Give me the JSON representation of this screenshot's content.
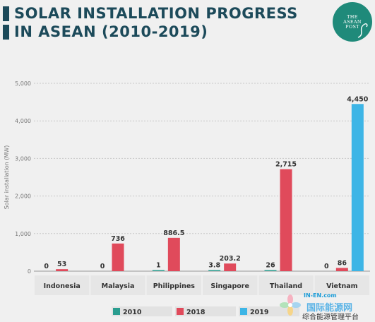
{
  "title": {
    "line1": "SOLAR INSTALLATION PROGRESS",
    "line2": "IN ASEAN (2010-2019)"
  },
  "logo": {
    "line1": "THE",
    "line2": "ASEAN",
    "line3": "POST"
  },
  "watermark": {
    "site": "IN-EN.com",
    "name_cn": "国际能源网",
    "account": "综合能源管理平台"
  },
  "colors": {
    "title": "#1c4a5a",
    "2010": "#2a9d8f",
    "2018": "#e04a5b",
    "2019": "#3db5e6"
  },
  "chart_data": {
    "type": "bar",
    "title": "SOLAR INSTALLATION PROGRESS IN ASEAN (2010-2019)",
    "ylabel": "Solar installation (MW)",
    "xlabel": "",
    "ylim": [
      0,
      5000
    ],
    "yticks": [
      "0",
      "1,000",
      "2,000",
      "3,000",
      "4,000",
      "5,000"
    ],
    "ytick_values": [
      0,
      1000,
      2000,
      3000,
      4000,
      5000
    ],
    "grid": true,
    "legend": "bottom",
    "categories": [
      "Indonesia",
      "Malaysia",
      "Philippines",
      "Singapore",
      "Thailand",
      "Vietnam"
    ],
    "series": [
      {
        "name": "2010",
        "color": "#2a9d8f",
        "values": [
          0,
          0,
          1,
          3.8,
          26,
          0
        ],
        "labels": [
          "0",
          "0",
          "1",
          "3.8",
          "26",
          "0"
        ]
      },
      {
        "name": "2018",
        "color": "#e04a5b",
        "values": [
          53,
          736,
          886.5,
          203.2,
          2715,
          86
        ],
        "labels": [
          "53",
          "736",
          "886.5",
          "203.2",
          "2,715",
          "86"
        ]
      },
      {
        "name": "2019",
        "color": "#3db5e6",
        "values": [
          null,
          null,
          null,
          null,
          null,
          4450
        ],
        "labels": [
          "",
          "",
          "",
          "",
          "",
          "4,450"
        ]
      }
    ]
  }
}
